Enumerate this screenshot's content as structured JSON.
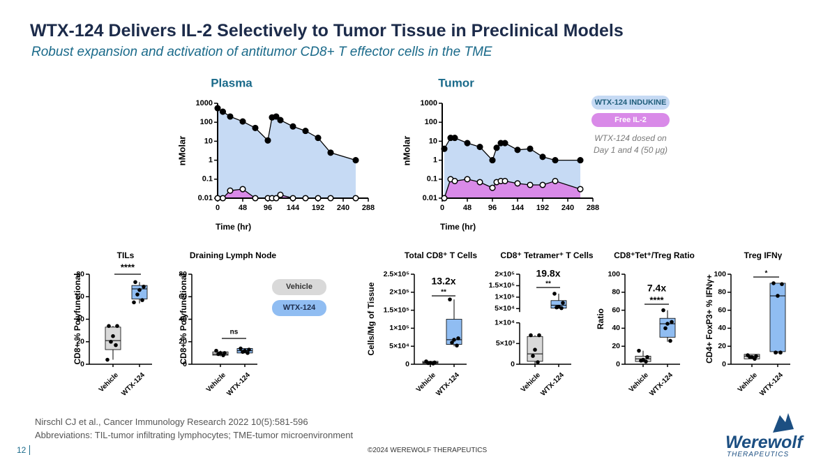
{
  "slide": {
    "title": "WTX-124 Delivers IL-2 Selectively to Tumor Tissue in Preclinical Models",
    "subtitle": "Robust expansion and activation of antitumor CD8+ T effector cells in the TME",
    "citation": "Nirschl CJ et al., Cancer Immunology Research 2022 10(5):581-596",
    "abbreviations": "Abbreviations:  TIL-tumor infiltrating lymphocytes; TME-tumor microenvironment",
    "copyright": "©2024 WEREWOLF THERAPEUTICS",
    "page": "12",
    "logo_name": "Werewolf",
    "logo_sub": "THERAPEUTICS"
  },
  "chart_data": [
    {
      "type": "line",
      "title": "Plasma",
      "xlabel": "Time (hr)",
      "ylabel": "nMolar",
      "log_y": true,
      "xlim": [
        0,
        288
      ],
      "xticks": [
        0,
        48,
        96,
        144,
        192,
        240,
        288
      ],
      "ylim": [
        0.01,
        1000
      ],
      "yticks": [
        0.01,
        0.1,
        1,
        10,
        100,
        1000
      ],
      "series": [
        {
          "color": "#000000",
          "area_color": "#c6daf4",
          "marker": "filled",
          "x": [
            0,
            10,
            24,
            48,
            72,
            96,
            104,
            112,
            120,
            144,
            168,
            192,
            216,
            264
          ],
          "values": [
            550,
            360,
            200,
            110,
            50,
            11,
            180,
            200,
            130,
            60,
            35,
            15,
            2.5,
            1
          ]
        },
        {
          "color": "#000000",
          "area_color": "#d98ae8",
          "marker": "open",
          "x": [
            0,
            10,
            24,
            48,
            72,
            96,
            104,
            112,
            120,
            144,
            168,
            192,
            216,
            264
          ],
          "values": [
            0.01,
            0.01,
            0.025,
            0.03,
            0.01,
            0.01,
            0.01,
            0.01,
            0.015,
            0.01,
            0.01,
            0.01,
            0.01,
            0.01
          ]
        }
      ]
    },
    {
      "type": "line",
      "title": "Tumor",
      "xlabel": "Time (hr)",
      "ylabel": "nMolar",
      "log_y": true,
      "xlim": [
        0,
        288
      ],
      "xticks": [
        0,
        48,
        96,
        144,
        192,
        240,
        288
      ],
      "ylim": [
        0.01,
        1000
      ],
      "yticks": [
        0.01,
        0.1,
        1,
        10,
        100,
        1000
      ],
      "note": "WTX-124 dosed on Day 1 and 4 (50 μg)",
      "series": [
        {
          "name": "WTX-124 INDUKINE",
          "color": "#000000",
          "area_color": "#c6daf4",
          "marker": "filled",
          "x": [
            4,
            16,
            24,
            48,
            72,
            96,
            104,
            112,
            120,
            144,
            168,
            192,
            216,
            264
          ],
          "values": [
            4,
            15,
            15,
            8,
            5,
            1,
            4.5,
            8,
            8,
            3.5,
            4,
            1.5,
            1,
            1
          ]
        },
        {
          "name": "Free IL-2",
          "color": "#000000",
          "area_color": "#d98ae8",
          "marker": "open",
          "x": [
            4,
            16,
            24,
            48,
            72,
            96,
            104,
            112,
            120,
            144,
            168,
            192,
            216,
            264
          ],
          "values": [
            0.01,
            0.1,
            0.08,
            0.1,
            0.07,
            0.035,
            0.07,
            0.08,
            0.08,
            0.06,
            0.05,
            0.05,
            0.08,
            0.03
          ]
        }
      ]
    },
    {
      "type": "box",
      "title": "TILs",
      "ylabel": "CD8+ % Polyfunctional",
      "ylim": [
        0,
        80
      ],
      "yticks": [
        0,
        20,
        40,
        60,
        80
      ],
      "categories": [
        "Vehicle",
        "WTX-124"
      ],
      "colors": [
        "#d9d9d9",
        "#90bdf2"
      ],
      "significance": "****",
      "boxes": [
        {
          "min": 4,
          "q1": 13,
          "median": 21,
          "q3": 33,
          "max": 34,
          "points": [
            34,
            34,
            25,
            20,
            17,
            4
          ]
        },
        {
          "min": 54,
          "q1": 58,
          "median": 67,
          "q3": 70,
          "max": 73,
          "points": [
            73,
            69,
            66,
            62,
            57,
            55
          ]
        }
      ]
    },
    {
      "type": "box",
      "title": "Draining Lymph Node",
      "ylabel": "CD8+ % Polyfunctional",
      "ylim": [
        0,
        80
      ],
      "yticks": [
        0,
        20,
        40,
        60,
        80
      ],
      "categories": [
        "Vehicle",
        "WTX-124"
      ],
      "colors": [
        "#d9d9d9",
        "#90bdf2"
      ],
      "significance": "ns",
      "boxes": [
        {
          "min": 7,
          "q1": 8,
          "median": 9,
          "q3": 11,
          "max": 12,
          "points": [
            12,
            10,
            10,
            9,
            8
          ]
        },
        {
          "min": 10,
          "q1": 10,
          "median": 12,
          "q3": 14,
          "max": 14,
          "points": [
            14,
            13,
            12,
            11,
            10
          ]
        }
      ]
    },
    {
      "type": "box",
      "title": "Total CD8⁺ T Cells",
      "ylabel": "Cells/Mg of Tissue",
      "ylim": [
        0,
        250000
      ],
      "yticks": [
        0,
        {
          "value": 50000,
          "label": "5×10⁴"
        },
        {
          "value": 100000,
          "label": "1×10⁵"
        },
        {
          "value": 150000,
          "label": "1.5×10⁵"
        },
        {
          "value": 200000,
          "label": "2×10⁵"
        },
        {
          "value": 250000,
          "label": "2.5×10⁵"
        }
      ],
      "categories": [
        "Vehicle",
        "WTX-124"
      ],
      "colors": [
        "#d9d9d9",
        "#90bdf2"
      ],
      "significance": "**",
      "fold_change": "13.2x",
      "boxes": [
        {
          "min": 2000,
          "q1": 3000,
          "median": 5000,
          "q3": 8000,
          "max": 8000,
          "points": [
            8000,
            5000,
            4000,
            3000,
            2000
          ]
        },
        {
          "min": 50000,
          "q1": 55000,
          "median": 68000,
          "q3": 125000,
          "max": 180000,
          "points": [
            180000,
            72000,
            68000,
            60000,
            52000
          ]
        }
      ]
    },
    {
      "type": "box",
      "title": "CD8⁺ Tetramer⁺ T Cells",
      "ylim_segments": [
        [
          0,
          10000
        ],
        [
          35000,
          200000
        ]
      ],
      "yticks": [
        0,
        {
          "value": 5000,
          "label": "5×10³"
        },
        {
          "value": 10000,
          "label": "1×10⁴"
        },
        {
          "value": 50000,
          "label": "5×10⁴"
        },
        {
          "value": 100000,
          "label": "1×10⁵"
        },
        {
          "value": 150000,
          "label": "1.5×10⁵"
        },
        {
          "value": 200000,
          "label": "2×10⁵"
        }
      ],
      "categories": [
        "Vehicle",
        "WTX-124"
      ],
      "colors": [
        "#d9d9d9",
        "#90bdf2"
      ],
      "significance": "**",
      "fold_change": "19.8x",
      "boxes": [
        {
          "min": 0,
          "q1": 700,
          "median": 2500,
          "q3": 6700,
          "max": 7000,
          "points": [
            7000,
            7000,
            3500,
            2000,
            500
          ]
        },
        {
          "min": 52000,
          "q1": 52000,
          "median": 65000,
          "q3": 85000,
          "max": 115000,
          "points": [
            115000,
            75000,
            58000,
            55000,
            52000
          ]
        }
      ]
    },
    {
      "type": "box",
      "title": "CD8⁺Tet⁺/Treg Ratio",
      "ylabel": "Ratio",
      "ylim": [
        0,
        100
      ],
      "yticks": [
        0,
        20,
        40,
        60,
        80,
        100
      ],
      "categories": [
        "Vehicle",
        "WTX-124"
      ],
      "colors": [
        "#d9d9d9",
        "#90bdf2"
      ],
      "significance": "****",
      "fold_change": "7.4x",
      "boxes": [
        {
          "min": 2,
          "q1": 3,
          "median": 6,
          "q3": 9,
          "max": 15,
          "points": [
            15,
            8,
            5,
            4,
            3
          ]
        },
        {
          "min": 25,
          "q1": 30,
          "median": 45,
          "q3": 51,
          "max": 60,
          "points": [
            60,
            47,
            45,
            40,
            26
          ]
        }
      ]
    },
    {
      "type": "box",
      "title": "Treg IFNγ",
      "ylabel": "CD4+ FoxP3+ % IFNγ+",
      "ylim": [
        0,
        100
      ],
      "yticks": [
        0,
        20,
        40,
        60,
        80,
        100
      ],
      "categories": [
        "Vehicle",
        "WTX-124"
      ],
      "colors": [
        "#d9d9d9",
        "#90bdf2"
      ],
      "significance": "*",
      "boxes": [
        {
          "min": 6,
          "q1": 6,
          "median": 9,
          "q3": 11,
          "max": 11,
          "points": [
            10,
            9,
            8,
            8,
            6
          ]
        },
        {
          "min": 12,
          "q1": 14,
          "median": 76,
          "q3": 90,
          "max": 90,
          "points": [
            90,
            89,
            76,
            13,
            13
          ]
        }
      ]
    }
  ]
}
